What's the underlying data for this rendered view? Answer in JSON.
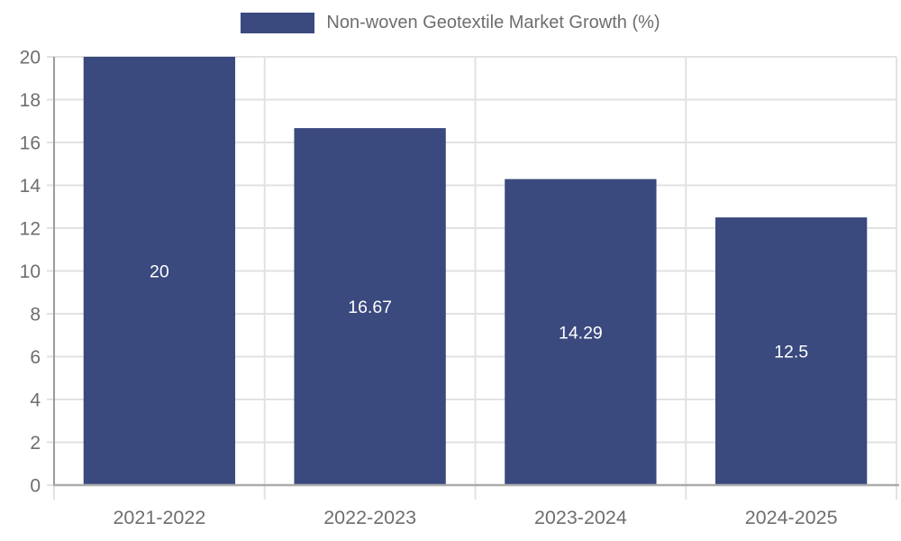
{
  "chart_data": {
    "type": "bar",
    "title": "",
    "legend_label": "Non-woven Geotextile Market Growth (%)",
    "legend_position": "top-center",
    "categories": [
      "2021-2022",
      "2022-2023",
      "2023-2024",
      "2024-2025"
    ],
    "values": [
      20,
      16.67,
      14.29,
      12.5
    ],
    "value_labels": [
      "20",
      "16.67",
      "14.29",
      "12.5"
    ],
    "xlabel": "",
    "ylabel": "",
    "ylim": [
      0,
      20
    ],
    "yticks": [
      0,
      2,
      4,
      6,
      8,
      10,
      12,
      14,
      16,
      18,
      20
    ],
    "grid": true,
    "colors": {
      "bar": "#3A497E",
      "bar_value_label": "#FFFFFF",
      "grid": "#E2E2E2",
      "x_axis": "#ABABAB",
      "y_axis": "#9B9B9B",
      "tick_label": "#6E6E6E",
      "legend_text": "#6E6E6E",
      "background": "#FFFFFF"
    }
  }
}
